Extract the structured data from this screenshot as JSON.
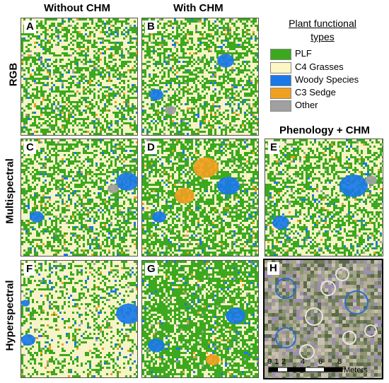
{
  "columns": {
    "without_chm": "Without CHM",
    "with_chm": "With CHM",
    "phenology_chm": "Phenology + CHM"
  },
  "rows": {
    "rgb": "RGB",
    "multispectral": "Multispectral",
    "hyperspectral": "Hyperspectral"
  },
  "legend": {
    "title_line1": "Plant functional",
    "title_line2": "types",
    "items": [
      {
        "label": "PLF",
        "color": "#3ca81e"
      },
      {
        "label": "C4 Grasses",
        "color": "#fbf6c4"
      },
      {
        "label": "Woody Species",
        "color": "#1a78e8"
      },
      {
        "label": "C3 Sedge",
        "color": "#f0a020"
      },
      {
        "label": "Other",
        "color": "#a0a0a0"
      }
    ]
  },
  "panels": {
    "A": "A",
    "B": "B",
    "C": "C",
    "D": "D",
    "E": "E",
    "F": "F",
    "G": "G",
    "H": "H"
  },
  "scale": {
    "ticks": [
      "0",
      "1",
      "2",
      "4",
      "6",
      "8"
    ],
    "unit": "Meters"
  }
}
